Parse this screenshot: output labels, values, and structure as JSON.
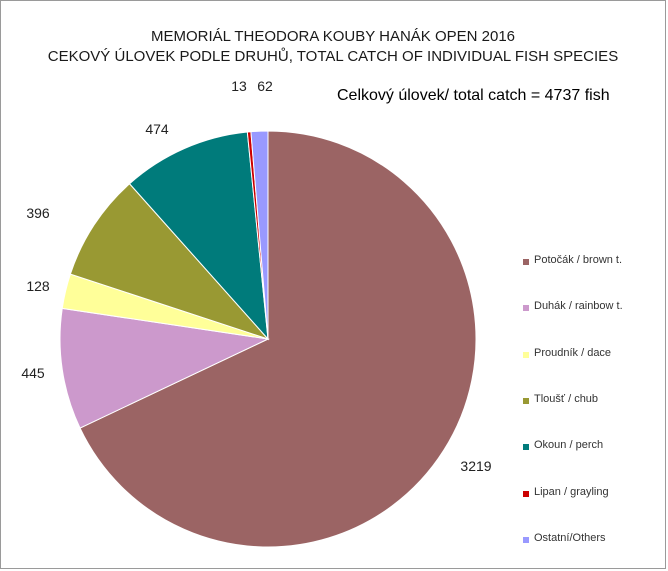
{
  "chart_data": {
    "type": "pie",
    "title": "MEMORIÁL THEODORA KOUBY HANÁK OPEN 2016",
    "subtitle": "CEKOVÝ ÚLOVEK PODLE DRUHŮ, TOTAL CATCH OF INDIVIDUAL FISH SPECIES",
    "annotation": "Celkový úlovek/ total catch = 4737 fish",
    "legend_position": "right",
    "slices": [
      {
        "label": "Potočák / brown t.",
        "value": 3219,
        "data_label": "3219",
        "color": "#9b6464"
      },
      {
        "label": "Duhák / rainbow t.",
        "value": 445,
        "data_label": "445",
        "color": "#cc99cc"
      },
      {
        "label": "Proudník / dace",
        "value": 128,
        "data_label": "128",
        "color": "#ffff99"
      },
      {
        "label": "Tloušť / chub",
        "value": 396,
        "data_label": "396",
        "color": "#999933"
      },
      {
        "label": "Okoun / perch",
        "value": 474,
        "data_label": "474",
        "color": "#007b7b"
      },
      {
        "label": "Lipan / grayling",
        "value": 13,
        "data_label": "13",
        "color": "#cc0000"
      },
      {
        "label": "Ostatní/Others",
        "value": 62,
        "data_label": "62",
        "color": "#9999ff"
      }
    ]
  }
}
